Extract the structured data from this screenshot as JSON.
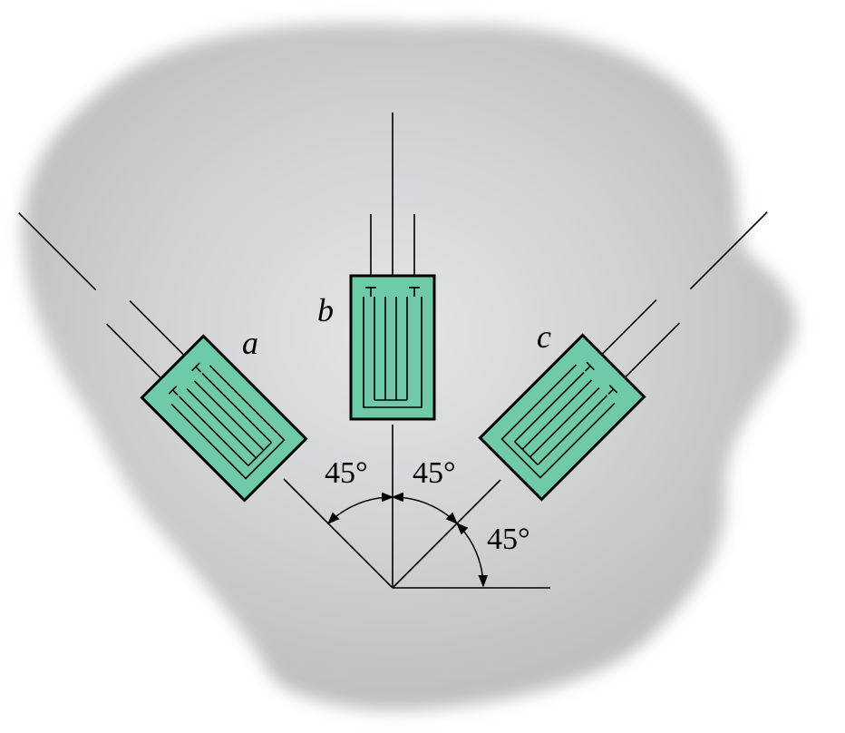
{
  "gauges": {
    "a": {
      "label": "a"
    },
    "b": {
      "label": "b"
    },
    "c": {
      "label": "c"
    }
  },
  "angles": {
    "a_to_b": "45°",
    "b_to_c": "45°",
    "c_to_horizontal": "45°"
  },
  "colors": {
    "gauge_fill": "#6fcaa8",
    "surface": "#c9cacc",
    "ink": "#000000"
  }
}
